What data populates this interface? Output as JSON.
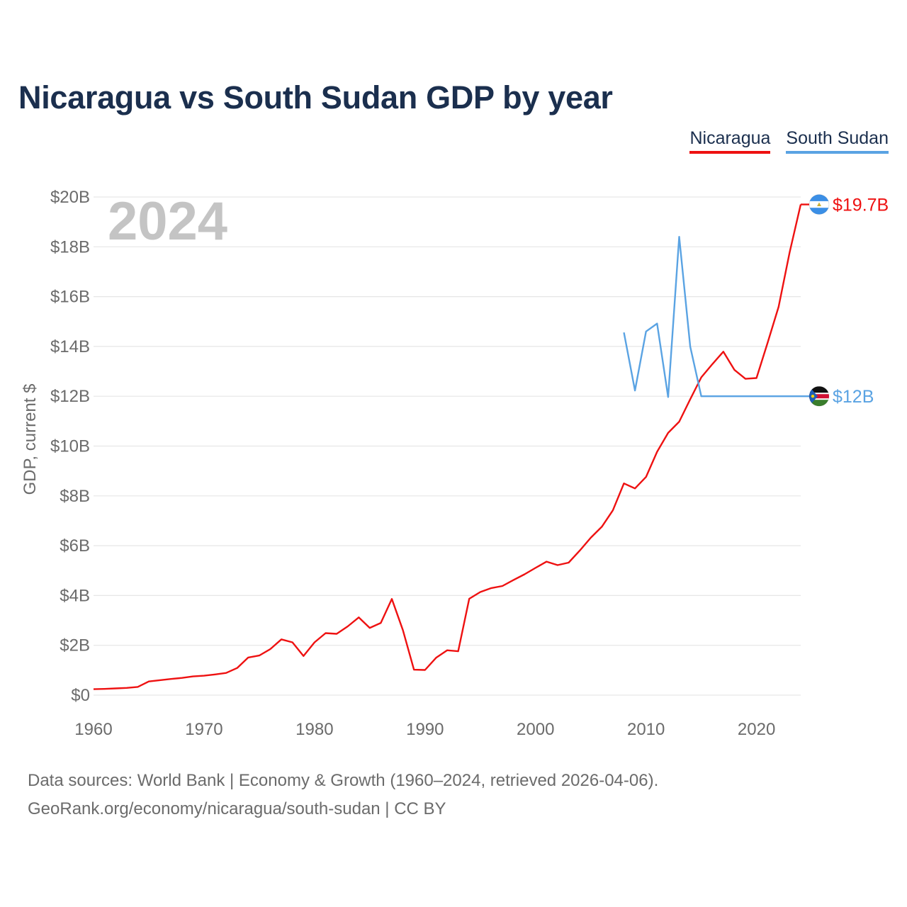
{
  "title": "Nicaragua vs South Sudan GDP by year",
  "legend": {
    "nicaragua": "Nicaragua",
    "south_sudan": "South Sudan"
  },
  "source": {
    "line1": "Data sources: World Bank | Economy & Growth (1960–2024, retrieved 2026-04-06).",
    "line2": "GeoRank.org/economy/nicaragua/south-sudan | CC BY"
  },
  "colors": {
    "nicaragua": "#ee1111",
    "south_sudan": "#5aa3e3",
    "title": "#1b2f4e",
    "grid": "#e6e6e6",
    "tick": "#6b6b6b",
    "year_watermark": "#c4c4c4"
  },
  "chart_data": {
    "type": "line",
    "title": "Nicaragua vs South Sudan GDP by year",
    "xlabel": "",
    "ylabel": "GDP, current $",
    "xlim": [
      1960,
      2024
    ],
    "ylim": [
      0,
      20
    ],
    "y_unit": "billion USD",
    "x_ticks": [
      1960,
      1970,
      1980,
      1990,
      2000,
      2010,
      2020
    ],
    "x_tick_labels": [
      "1960",
      "1970",
      "1980",
      "1990",
      "2000",
      "2010",
      "2020"
    ],
    "y_ticks": [
      0,
      2,
      4,
      6,
      8,
      10,
      12,
      14,
      16,
      18,
      20
    ],
    "y_tick_labels": [
      "$0",
      "$2B",
      "$4B",
      "$6B",
      "$8B",
      "$10B",
      "$12B",
      "$14B",
      "$16B",
      "$18B",
      "$20B"
    ],
    "grid": true,
    "year_label": "2024",
    "series": [
      {
        "name": "Nicaragua",
        "end_label": "$19.7B",
        "flag": "nicaragua-flag",
        "x": [
          1960,
          1961,
          1962,
          1963,
          1964,
          1965,
          1966,
          1967,
          1968,
          1969,
          1970,
          1971,
          1972,
          1973,
          1974,
          1975,
          1976,
          1977,
          1978,
          1979,
          1980,
          1981,
          1982,
          1983,
          1984,
          1985,
          1986,
          1987,
          1988,
          1989,
          1990,
          1991,
          1992,
          1993,
          1994,
          1995,
          1996,
          1997,
          1998,
          1999,
          2000,
          2001,
          2002,
          2003,
          2004,
          2005,
          2006,
          2007,
          2008,
          2009,
          2010,
          2011,
          2012,
          2013,
          2014,
          2015,
          2016,
          2017,
          2018,
          2019,
          2020,
          2021,
          2022,
          2023,
          2024
        ],
        "values": [
          0.24,
          0.25,
          0.27,
          0.29,
          0.33,
          0.55,
          0.6,
          0.65,
          0.69,
          0.75,
          0.78,
          0.83,
          0.89,
          1.09,
          1.51,
          1.59,
          1.85,
          2.24,
          2.12,
          1.57,
          2.12,
          2.49,
          2.46,
          2.76,
          3.12,
          2.7,
          2.9,
          3.86,
          2.61,
          1.02,
          1.01,
          1.5,
          1.8,
          1.76,
          3.87,
          4.14,
          4.3,
          4.38,
          4.62,
          4.85,
          5.11,
          5.36,
          5.22,
          5.32,
          5.8,
          6.32,
          6.76,
          7.42,
          8.5,
          8.3,
          8.76,
          9.77,
          10.53,
          10.98,
          11.88,
          12.76,
          13.29,
          13.79,
          13.06,
          12.7,
          12.73,
          14.14,
          15.59,
          17.78,
          19.7
        ]
      },
      {
        "name": "South Sudan",
        "end_label": "$12B",
        "flag": "south-sudan-flag",
        "x": [
          2008,
          2009,
          2010,
          2011,
          2012,
          2013,
          2014,
          2015,
          2016,
          2017,
          2018,
          2019,
          2020,
          2021,
          2022,
          2023,
          2024
        ],
        "values": [
          14.56,
          12.23,
          14.6,
          14.92,
          11.97,
          18.4,
          13.99,
          12.0,
          12.0,
          12.0,
          12.0,
          12.0,
          12.0,
          12.0,
          12.0,
          12.0,
          12.0
        ]
      }
    ]
  }
}
